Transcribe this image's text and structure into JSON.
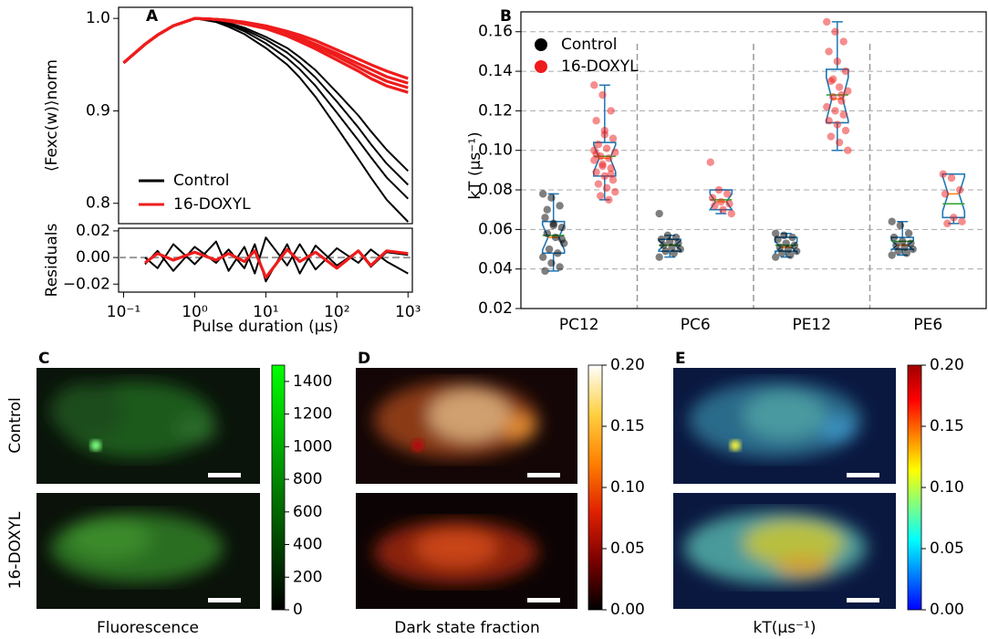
{
  "chart_data": [
    {
      "type": "line",
      "label": "A",
      "ylabel": "⟨Fexc(w)⟩norm",
      "xscale": "log",
      "xlim": [
        0.085,
        1150
      ],
      "ylim": [
        0.778,
        1.012
      ],
      "yticks": [
        0.8,
        0.9,
        {
          "value": 1,
          "label": "1.0"
        }
      ],
      "legend": "lower left",
      "x": [
        0.1,
        0.2,
        0.3,
        0.5,
        1,
        2,
        3,
        5,
        10,
        20,
        30,
        50,
        100,
        200,
        300,
        500,
        1000
      ],
      "series": [
        {
          "name": "Control",
          "color": "#000000",
          "values": [
            0.952,
            0.972,
            0.982,
            0.992,
            1.0,
            0.998,
            0.995,
            0.99,
            0.98,
            0.968,
            0.958,
            0.944,
            0.92,
            0.895,
            0.878,
            0.858,
            0.835
          ]
        },
        {
          "name": "Control",
          "color": "#000000",
          "values": [
            0.952,
            0.972,
            0.982,
            0.992,
            1.0,
            0.997,
            0.994,
            0.988,
            0.977,
            0.963,
            0.952,
            0.936,
            0.91,
            0.882,
            0.864,
            0.843,
            0.82
          ]
        },
        {
          "name": "Control",
          "color": "#000000",
          "values": [
            0.952,
            0.972,
            0.982,
            0.992,
            1.0,
            0.997,
            0.993,
            0.986,
            0.973,
            0.957,
            0.945,
            0.927,
            0.898,
            0.868,
            0.85,
            0.828,
            0.805
          ]
        },
        {
          "name": "Control",
          "color": "#000000",
          "values": [
            0.952,
            0.972,
            0.982,
            0.992,
            1.0,
            0.996,
            0.991,
            0.983,
            0.968,
            0.95,
            0.936,
            0.915,
            0.882,
            0.848,
            0.828,
            0.804,
            0.78
          ]
        },
        {
          "name": "16-DOXYL",
          "color": "#ee1c1c",
          "values": [
            0.952,
            0.972,
            0.982,
            0.992,
            1.0,
            0.999,
            0.998,
            0.996,
            0.992,
            0.986,
            0.982,
            0.976,
            0.966,
            0.956,
            0.95,
            0.943,
            0.935
          ]
        },
        {
          "name": "16-DOXYL",
          "color": "#ee1c1c",
          "values": [
            0.952,
            0.972,
            0.982,
            0.992,
            1.0,
            0.999,
            0.998,
            0.995,
            0.991,
            0.984,
            0.979,
            0.972,
            0.962,
            0.951,
            0.945,
            0.937,
            0.93
          ]
        },
        {
          "name": "16-DOXYL",
          "color": "#ee1c1c",
          "values": [
            0.952,
            0.972,
            0.982,
            0.992,
            1.0,
            0.999,
            0.997,
            0.995,
            0.99,
            0.983,
            0.977,
            0.97,
            0.959,
            0.947,
            0.94,
            0.932,
            0.925
          ]
        },
        {
          "name": "16-DOXYL",
          "color": "#ee1c1c",
          "values": [
            0.952,
            0.972,
            0.982,
            0.992,
            1.0,
            0.999,
            0.997,
            0.994,
            0.989,
            0.981,
            0.975,
            0.967,
            0.955,
            0.943,
            0.935,
            0.927,
            0.92
          ]
        }
      ]
    },
    {
      "type": "line",
      "ylabel": "Residuals",
      "xlabel": "Pulse duration (μs)",
      "xscale": "log",
      "xlim": [
        0.085,
        1150
      ],
      "ylim": [
        -0.026,
        0.022
      ],
      "yticks": [
        0.02,
        {
          "value": 0,
          "label": "0.00"
        },
        {
          "value": -0.02,
          "label": "−0.02"
        }
      ],
      "xticks": [
        {
          "value": 0.1,
          "label": "10⁻¹"
        },
        {
          "value": 1,
          "label": "10⁰"
        },
        {
          "value": 10,
          "label": "10¹"
        },
        {
          "value": 100,
          "label": "10²"
        },
        {
          "value": 1000,
          "label": "10³"
        }
      ],
      "zero_line": true,
      "x": [
        0.2,
        0.3,
        0.5,
        1,
        2,
        3,
        5,
        7,
        10,
        20,
        30,
        50,
        100,
        200,
        300,
        500,
        1000
      ],
      "series": [
        {
          "color": "#000000",
          "values": [
            0.0,
            -0.008,
            0.01,
            -0.005,
            0.012,
            -0.01,
            0.008,
            -0.012,
            0.015,
            -0.006,
            0.01,
            -0.009,
            0.007,
            -0.004,
            0.006,
            -0.003,
            -0.012
          ]
        },
        {
          "color": "#000000",
          "values": [
            -0.005,
            0.005,
            -0.01,
            0.008,
            -0.004,
            0.006,
            -0.008,
            0.01,
            -0.018,
            0.01,
            -0.012,
            0.009,
            -0.006,
            0.005,
            -0.007,
            0.004,
            0.002
          ]
        },
        {
          "color": "#ee1c1c",
          "values": [
            -0.004,
            0.003,
            -0.002,
            0.004,
            -0.002,
            0.003,
            -0.003,
            0.005,
            -0.015,
            0.006,
            -0.003,
            0.004,
            -0.008,
            0.005,
            -0.006,
            0.005,
            0.003
          ]
        }
      ]
    },
    {
      "type": "box",
      "label": "B",
      "ylabel": "kT (μs⁻¹)",
      "categories": [
        "PC12",
        "PC6",
        "PE12",
        "PE6"
      ],
      "ylim": [
        0.02,
        0.1645
      ],
      "yticks": [
        0.02,
        0.04,
        0.06,
        0.08,
        {
          "value": 0.1,
          "label": "0.10"
        },
        0.12,
        0.14,
        0.16
      ],
      "grid": true,
      "legend": "upper left",
      "box_color": "#1f77b4",
      "series": [
        {
          "name": "Control",
          "color": "#000000",
          "boxes": [
            {
              "whislo": 0.039,
              "q1": 0.048,
              "median": 0.056,
              "q3": 0.064,
              "whishi": 0.078,
              "mean": 0.057,
              "points": [
                0.078,
                0.076,
                0.072,
                0.066,
                0.063,
                0.061,
                0.058,
                0.056,
                0.053,
                0.05,
                0.048,
                0.046,
                0.043,
                0.041,
                0.039,
                0.062,
                0.055,
                0.07
              ]
            },
            {
              "whislo": 0.046,
              "q1": 0.049,
              "median": 0.052,
              "q3": 0.055,
              "whishi": 0.057,
              "mean": 0.052,
              "points": [
                0.068,
                0.057,
                0.056,
                0.055,
                0.054,
                0.053,
                0.052,
                0.051,
                0.05,
                0.049,
                0.048,
                0.046
              ]
            },
            {
              "whislo": 0.046,
              "q1": 0.049,
              "median": 0.051,
              "q3": 0.056,
              "whishi": 0.058,
              "mean": 0.052,
              "points": [
                0.058,
                0.057,
                0.056,
                0.055,
                0.053,
                0.052,
                0.051,
                0.05,
                0.049,
                0.048,
                0.047,
                0.046
              ]
            },
            {
              "whislo": 0.047,
              "q1": 0.05,
              "median": 0.052,
              "q3": 0.056,
              "whishi": 0.064,
              "mean": 0.054,
              "points": [
                0.064,
                0.062,
                0.058,
                0.056,
                0.054,
                0.053,
                0.052,
                0.051,
                0.05,
                0.049,
                0.048,
                0.047
              ]
            }
          ]
        },
        {
          "name": "16-DOXYL",
          "color": "#ee1c1c",
          "boxes": [
            {
              "whislo": 0.075,
              "q1": 0.087,
              "median": 0.096,
              "q3": 0.104,
              "whishi": 0.133,
              "mean": 0.097,
              "points": [
                0.133,
                0.128,
                0.12,
                0.115,
                0.11,
                0.106,
                0.103,
                0.101,
                0.099,
                0.097,
                0.096,
                0.095,
                0.093,
                0.091,
                0.089,
                0.087,
                0.085,
                0.083,
                0.081,
                0.079,
                0.077,
                0.075,
                0.1,
                0.092,
                0.088,
                0.098,
                0.108
              ]
            },
            {
              "whislo": 0.068,
              "q1": 0.07,
              "median": 0.074,
              "q3": 0.08,
              "whishi": 0.08,
              "mean": 0.075,
              "points": [
                0.094,
                0.08,
                0.078,
                0.076,
                0.074,
                0.073,
                0.072,
                0.07,
                0.068
              ]
            },
            {
              "whislo": 0.1,
              "q1": 0.114,
              "median": 0.126,
              "q3": 0.141,
              "whishi": 0.165,
              "mean": 0.128,
              "points": [
                0.165,
                0.16,
                0.155,
                0.15,
                0.145,
                0.14,
                0.135,
                0.132,
                0.13,
                0.127,
                0.125,
                0.122,
                0.12,
                0.118,
                0.115,
                0.113,
                0.11,
                0.107,
                0.104,
                0.1,
                0.136,
                0.128
              ]
            },
            {
              "whislo": 0.063,
              "q1": 0.066,
              "median": 0.078,
              "q3": 0.088,
              "whishi": 0.088,
              "mean": 0.073,
              "points": [
                0.088,
                0.086,
                0.08,
                0.078,
                0.066,
                0.064,
                0.063
              ]
            }
          ]
        }
      ]
    },
    {
      "type": "image",
      "label": "C",
      "xlabel": "Fluorescence",
      "row_labels": [
        "Control",
        "16-DOXYL"
      ],
      "row_label_colors": [
        "#000000",
        "#ee1c1c"
      ],
      "colormap": [
        "#000000",
        "#00ff00"
      ],
      "ylim": [
        0,
        1500
      ],
      "yticks": [
        0,
        200,
        400,
        600,
        800,
        1000,
        1200,
        1400
      ]
    },
    {
      "type": "image",
      "label": "D",
      "xlabel": "Dark state fraction",
      "colormap": [
        "#000000",
        "#7a0000",
        "#e02000",
        "#ff8000",
        "#ffd040",
        "#ffffff"
      ],
      "ylim": [
        0,
        0.2
      ],
      "yticks": [
        {
          "value": 0,
          "label": "0.00"
        },
        0.05,
        {
          "value": 0.1,
          "label": "0.10"
        },
        0.15,
        {
          "value": 0.2,
          "label": "0.20"
        }
      ]
    },
    {
      "type": "image",
      "label": "E",
      "xlabel": "kT(μs⁻¹)",
      "colormap": [
        "#0000ff",
        "#0080ff",
        "#00ffff",
        "#80ff80",
        "#ffff00",
        "#ff8000",
        "#ff0000",
        "#a00000"
      ],
      "ylim": [
        0,
        0.2
      ],
      "yticks": [
        {
          "value": 0,
          "label": "0.00"
        },
        0.05,
        {
          "value": 0.1,
          "label": "0.10"
        },
        0.15,
        {
          "value": 0.2,
          "label": "0.20"
        }
      ]
    }
  ]
}
